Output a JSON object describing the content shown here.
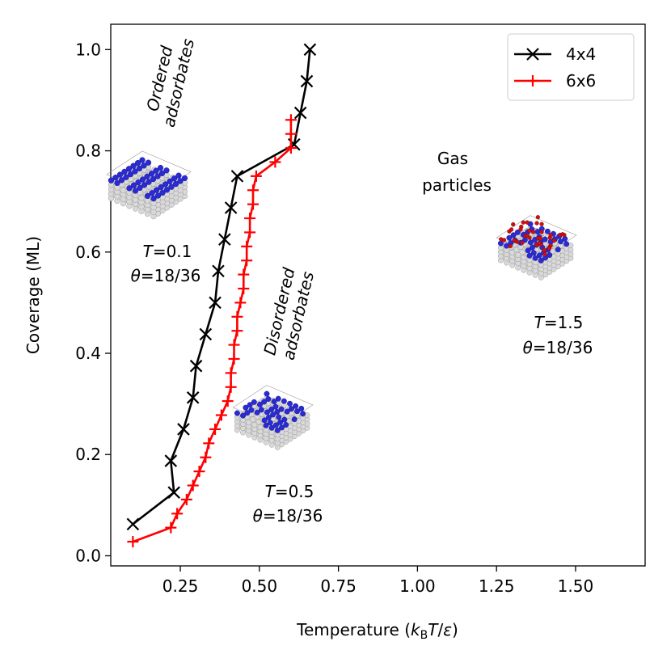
{
  "chart_data": {
    "type": "line",
    "xlabel": "Temperature (k_B T/ε)",
    "ylabel": "Coverage (ML)",
    "xlim": [
      0.03,
      1.72
    ],
    "ylim": [
      -0.02,
      1.05
    ],
    "xticks": [
      "0.25",
      "0.50",
      "0.75",
      "1.00",
      "1.25",
      "1.50"
    ],
    "yticks": [
      "0.0",
      "0.2",
      "0.4",
      "0.6",
      "0.8",
      "1.0"
    ],
    "grid": false,
    "legend_position": "top-right",
    "series": [
      {
        "name": "4x4",
        "color": "#000000",
        "marker": "x",
        "points": [
          {
            "x": 0.1,
            "y": 0.0625
          },
          {
            "x": 0.23,
            "y": 0.125
          },
          {
            "x": 0.22,
            "y": 0.1875
          },
          {
            "x": 0.26,
            "y": 0.25
          },
          {
            "x": 0.29,
            "y": 0.3125
          },
          {
            "x": 0.3,
            "y": 0.375
          },
          {
            "x": 0.33,
            "y": 0.4375
          },
          {
            "x": 0.36,
            "y": 0.5
          },
          {
            "x": 0.37,
            "y": 0.5625
          },
          {
            "x": 0.39,
            "y": 0.625
          },
          {
            "x": 0.41,
            "y": 0.6875
          },
          {
            "x": 0.43,
            "y": 0.75
          },
          {
            "x": 0.61,
            "y": 0.8125
          },
          {
            "x": 0.63,
            "y": 0.875
          },
          {
            "x": 0.65,
            "y": 0.9375
          },
          {
            "x": 0.66,
            "y": 1.0
          }
        ]
      },
      {
        "name": "6x6",
        "color": "#ff0000",
        "marker": "+",
        "points": [
          {
            "x": 0.1,
            "y": 0.0278
          },
          {
            "x": 0.22,
            "y": 0.0556
          },
          {
            "x": 0.24,
            "y": 0.0833
          },
          {
            "x": 0.27,
            "y": 0.1111
          },
          {
            "x": 0.29,
            "y": 0.1389
          },
          {
            "x": 0.31,
            "y": 0.1667
          },
          {
            "x": 0.33,
            "y": 0.1944
          },
          {
            "x": 0.34,
            "y": 0.2222
          },
          {
            "x": 0.36,
            "y": 0.25
          },
          {
            "x": 0.38,
            "y": 0.2778
          },
          {
            "x": 0.4,
            "y": 0.3056
          },
          {
            "x": 0.41,
            "y": 0.3333
          },
          {
            "x": 0.41,
            "y": 0.3611
          },
          {
            "x": 0.42,
            "y": 0.3889
          },
          {
            "x": 0.42,
            "y": 0.4167
          },
          {
            "x": 0.43,
            "y": 0.4444
          },
          {
            "x": 0.43,
            "y": 0.4722
          },
          {
            "x": 0.44,
            "y": 0.5
          },
          {
            "x": 0.45,
            "y": 0.5278
          },
          {
            "x": 0.45,
            "y": 0.5556
          },
          {
            "x": 0.46,
            "y": 0.5833
          },
          {
            "x": 0.46,
            "y": 0.6111
          },
          {
            "x": 0.47,
            "y": 0.6389
          },
          {
            "x": 0.47,
            "y": 0.6667
          },
          {
            "x": 0.48,
            "y": 0.6944
          },
          {
            "x": 0.48,
            "y": 0.7222
          },
          {
            "x": 0.49,
            "y": 0.75
          },
          {
            "x": 0.55,
            "y": 0.7778
          },
          {
            "x": 0.6,
            "y": 0.8056
          },
          {
            "x": 0.6,
            "y": 0.8333
          },
          {
            "x": 0.6,
            "y": 0.8611
          }
        ]
      }
    ]
  },
  "annotations": {
    "ordered_line1": "Ordered",
    "ordered_line2": "adsorbates",
    "disordered_line1": "Disordered",
    "disordered_line2": "adsorbates",
    "gas_line1": "Gas",
    "gas_line2": "particles",
    "panel_low_T_var": "T",
    "panel_low_T_val": "=0.1",
    "panel_low_theta_var": "θ",
    "panel_low_theta_val": "=18/36",
    "panel_mid_T_var": "T",
    "panel_mid_T_val": "=0.5",
    "panel_mid_theta_var": "θ",
    "panel_mid_theta_val": "=18/36",
    "panel_high_T_var": "T",
    "panel_high_T_val": "=1.5",
    "panel_high_theta_var": "θ",
    "panel_high_theta_val": "=18/36"
  },
  "colors": {
    "substrate": "#d9d9d9",
    "adsorbate": "#2b2bd6",
    "gas": "#cc1111"
  }
}
